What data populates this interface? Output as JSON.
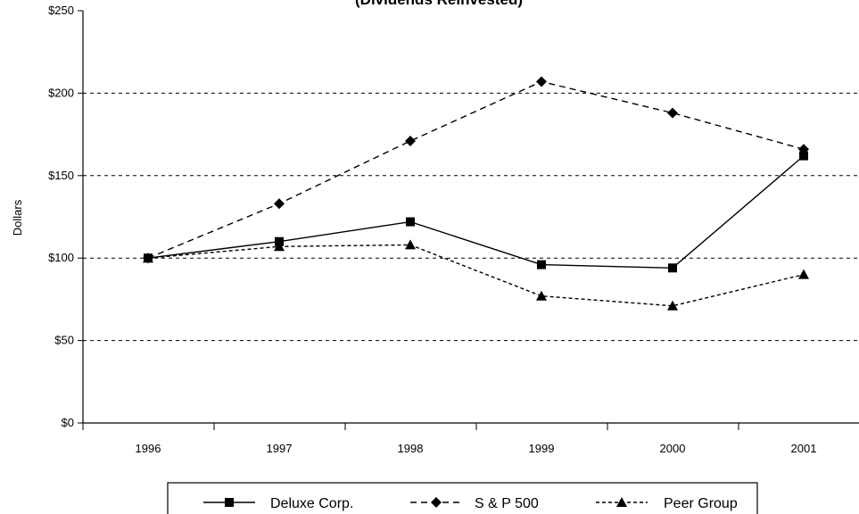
{
  "chart_data": {
    "type": "line",
    "title": "(Dividends Reinvested)",
    "ylabel": "Dollars",
    "xlabel": "",
    "categories": [
      "1996",
      "1997",
      "1998",
      "1999",
      "2000",
      "2001"
    ],
    "ylim": [
      0,
      250
    ],
    "yticks": [
      0,
      50,
      100,
      150,
      200,
      250
    ],
    "ytick_labels": [
      "$0",
      "$50",
      "$100",
      "$150",
      "$200",
      "$250"
    ],
    "grid": "horizontal-dashed",
    "legend_position": "bottom",
    "series": [
      {
        "name": "Deluxe Corp.",
        "values": [
          100,
          110,
          122,
          96,
          94,
          162
        ],
        "marker": "square",
        "line": "solid",
        "color": "#000000"
      },
      {
        "name": "S & P 500",
        "values": [
          100,
          133,
          171,
          207,
          188,
          166
        ],
        "marker": "diamond",
        "line": "dashed",
        "color": "#000000"
      },
      {
        "name": "Peer Group",
        "values": [
          100,
          107,
          108,
          77,
          71,
          90
        ],
        "marker": "triangle",
        "line": "dotted",
        "color": "#000000"
      }
    ]
  }
}
